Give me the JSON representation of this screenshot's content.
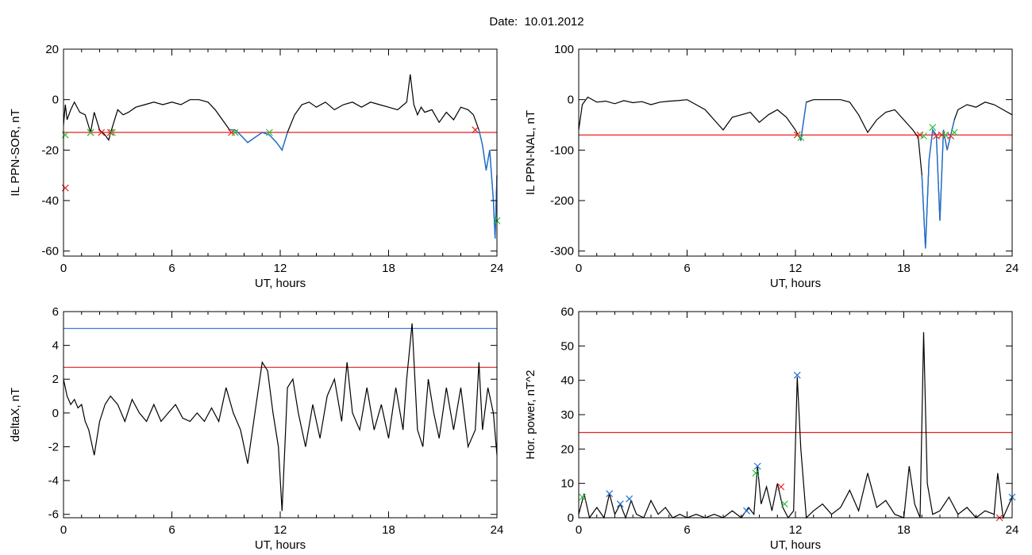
{
  "title": "Date:  10.01.2012",
  "colors": {
    "trace": "#000000",
    "threshold_red": "#e8211f",
    "threshold_blue": "#1f6fd1",
    "marker_green": "#2fbf3a"
  },
  "chart_data": [
    {
      "type": "line",
      "ylabel": "IL PPN-SOR, nT",
      "xlabel": "UT, hours",
      "xlim": [
        0,
        24
      ],
      "ylim": [
        -62,
        20
      ],
      "xticks": [
        "0",
        "6",
        "12",
        "18",
        "24"
      ],
      "yticks": [
        "20",
        "0",
        "-20",
        "-40",
        "-60"
      ],
      "ytick_values": [
        20,
        0,
        -20,
        -40,
        -60
      ],
      "thresholds": [
        {
          "y": -13,
          "color": "red"
        }
      ],
      "series": [
        {
          "x": [
            0,
            0.1,
            0.2,
            0.4,
            0.6,
            0.9,
            1.2,
            1.5,
            1.7,
            2.0,
            2.3,
            2.5,
            2.7,
            3.0,
            3.3,
            3.6,
            4.0,
            4.5,
            5.0,
            5.5,
            6.0,
            6.5,
            7.0,
            7.5,
            8.0,
            8.4,
            8.8,
            9.2,
            9.5,
            9.8,
            10.2,
            10.6,
            11.0,
            11.4,
            11.8,
            12.1,
            12.4,
            12.8,
            13.2,
            13.6,
            14.0,
            14.5,
            15.0,
            15.5,
            16.0,
            16.5,
            17.0,
            17.5,
            18.0,
            18.5,
            19.0,
            19.2,
            19.4,
            19.6,
            19.8,
            20.0,
            20.4,
            20.8,
            21.2,
            21.6,
            22.0,
            22.4,
            22.7,
            23.0,
            23.2,
            23.4,
            23.6,
            23.8,
            23.9,
            24.0
          ],
          "y": [
            -10,
            -2,
            -8,
            -4,
            -1,
            -5,
            -6,
            -13,
            -5,
            -12,
            -14,
            -16,
            -11,
            -4,
            -6,
            -5,
            -3,
            -2,
            -1,
            -2,
            -1,
            -2,
            0,
            0,
            -1,
            -4,
            -8,
            -12,
            -12,
            -14,
            -17,
            -15,
            -13,
            -14,
            -17,
            -20,
            -13,
            -6,
            -2,
            -1,
            -3,
            -1,
            -4,
            -2,
            -1,
            -3,
            -1,
            -2,
            -3,
            -4,
            -1,
            10,
            -2,
            -6,
            -3,
            -5,
            -4,
            -9,
            -5,
            -8,
            -3,
            -4,
            -6,
            -12,
            -18,
            -28,
            -20,
            -40,
            -55,
            -30
          ]
        }
      ],
      "markers": [
        {
          "x": 0.1,
          "y": -14,
          "color": "green"
        },
        {
          "x": 0.1,
          "y": -35,
          "color": "red"
        },
        {
          "x": 1.5,
          "y": -13,
          "color": "red"
        },
        {
          "x": 1.5,
          "y": -13,
          "color": "green"
        },
        {
          "x": 2.1,
          "y": -13,
          "color": "red"
        },
        {
          "x": 2.6,
          "y": -13,
          "color": "red"
        },
        {
          "x": 2.7,
          "y": -13,
          "color": "green"
        },
        {
          "x": 9.3,
          "y": -13,
          "color": "red"
        },
        {
          "x": 9.5,
          "y": -13,
          "color": "green"
        },
        {
          "x": 11.4,
          "y": -13,
          "color": "green"
        },
        {
          "x": 22.8,
          "y": -12,
          "color": "red"
        },
        {
          "x": 24,
          "y": -48,
          "color": "green"
        }
      ],
      "highlight_segments": [
        [
          9.2,
          12.5
        ],
        [
          22.9,
          24
        ]
      ]
    },
    {
      "type": "line",
      "ylabel": "IL PPN-NAL, nT",
      "xlabel": "UT, hours",
      "xlim": [
        0,
        24
      ],
      "ylim": [
        -310,
        100
      ],
      "xticks": [
        "0",
        "6",
        "12",
        "18",
        "24"
      ],
      "yticks": [
        "100",
        "0",
        "-100",
        "-200",
        "-300"
      ],
      "ytick_values": [
        100,
        0,
        -100,
        -200,
        -300
      ],
      "thresholds": [
        {
          "y": -70,
          "color": "red"
        }
      ],
      "series": [
        {
          "x": [
            0,
            0.2,
            0.5,
            1.0,
            1.5,
            2.0,
            2.5,
            3.0,
            3.5,
            4.0,
            4.5,
            5.0,
            5.5,
            6.0,
            6.5,
            7.0,
            7.5,
            8.0,
            8.5,
            9.0,
            9.5,
            10.0,
            10.5,
            11.0,
            11.5,
            12.0,
            12.3,
            12.6,
            13.0,
            13.5,
            14.0,
            14.5,
            15.0,
            15.5,
            16.0,
            16.5,
            17.0,
            17.5,
            18.0,
            18.5,
            18.8,
            19.0,
            19.2,
            19.4,
            19.6,
            19.8,
            20.0,
            20.2,
            20.4,
            20.6,
            20.8,
            21.0,
            21.5,
            22.0,
            22.5,
            23.0,
            23.5,
            24.0
          ],
          "y": [
            -60,
            -10,
            5,
            -5,
            -3,
            -8,
            -2,
            -6,
            -4,
            -10,
            -5,
            -3,
            -2,
            0,
            -10,
            -20,
            -40,
            -60,
            -35,
            -30,
            -25,
            -45,
            -30,
            -20,
            -35,
            -60,
            -80,
            -5,
            0,
            0,
            0,
            0,
            -5,
            -30,
            -65,
            -40,
            -25,
            -20,
            -40,
            -60,
            -75,
            -150,
            -295,
            -120,
            -60,
            -70,
            -240,
            -60,
            -100,
            -70,
            -40,
            -20,
            -10,
            -15,
            -5,
            -10,
            -20,
            -30
          ]
        }
      ],
      "markers": [
        {
          "x": 12.1,
          "y": -70,
          "color": "red"
        },
        {
          "x": 12.3,
          "y": -75,
          "color": "green"
        },
        {
          "x": 18.9,
          "y": -70,
          "color": "red"
        },
        {
          "x": 19.1,
          "y": -72,
          "color": "green"
        },
        {
          "x": 19.6,
          "y": -55,
          "color": "green"
        },
        {
          "x": 19.8,
          "y": -72,
          "color": "red"
        },
        {
          "x": 20.1,
          "y": -70,
          "color": "red"
        },
        {
          "x": 20.3,
          "y": -70,
          "color": "green"
        },
        {
          "x": 20.6,
          "y": -72,
          "color": "red"
        },
        {
          "x": 20.8,
          "y": -65,
          "color": "green"
        }
      ],
      "highlight_segments": [
        [
          12.1,
          12.6
        ],
        [
          18.9,
          20.8
        ]
      ]
    },
    {
      "type": "line",
      "ylabel": "deltaX, nT",
      "xlabel": "UT, hours",
      "xlim": [
        0,
        24
      ],
      "ylim": [
        -6.2,
        6
      ],
      "xticks": [
        "0",
        "6",
        "12",
        "18",
        "24"
      ],
      "yticks": [
        "6",
        "4",
        "2",
        "0",
        "-2",
        "-4",
        "-6"
      ],
      "ytick_values": [
        6,
        4,
        2,
        0,
        -2,
        -4,
        -6
      ],
      "thresholds": [
        {
          "y": 5.0,
          "color": "blue"
        },
        {
          "y": 2.7,
          "color": "red"
        }
      ],
      "series": [
        {
          "x": [
            0,
            0.2,
            0.4,
            0.6,
            0.8,
            1.0,
            1.2,
            1.4,
            1.7,
            2.0,
            2.3,
            2.6,
            3.0,
            3.4,
            3.8,
            4.2,
            4.6,
            5.0,
            5.4,
            5.8,
            6.2,
            6.6,
            7.0,
            7.4,
            7.8,
            8.2,
            8.6,
            9.0,
            9.4,
            9.8,
            10.2,
            10.6,
            11.0,
            11.3,
            11.6,
            11.9,
            12.1,
            12.4,
            12.7,
            13.0,
            13.4,
            13.8,
            14.2,
            14.6,
            15.0,
            15.4,
            15.7,
            16.0,
            16.4,
            16.8,
            17.2,
            17.6,
            18.0,
            18.4,
            18.8,
            19.0,
            19.3,
            19.6,
            19.9,
            20.2,
            20.5,
            20.8,
            21.2,
            21.6,
            22.0,
            22.4,
            22.8,
            23.0,
            23.2,
            23.5,
            23.8,
            24.0
          ],
          "y": [
            2,
            1,
            0.5,
            0.8,
            0.3,
            0.5,
            -0.5,
            -1,
            -2.5,
            -0.5,
            0.5,
            1,
            0.5,
            -0.5,
            0.8,
            0,
            -0.5,
            0.5,
            -0.5,
            0,
            0.5,
            -0.3,
            -0.5,
            0,
            -0.5,
            0.3,
            -0.5,
            1.5,
            0,
            -1,
            -3,
            0,
            3,
            2.5,
            0,
            -2,
            -5.8,
            1.5,
            2,
            0,
            -2,
            0.5,
            -1.5,
            1,
            2,
            -0.5,
            3,
            0,
            -1,
            1.5,
            -1,
            0.5,
            -1.5,
            1.5,
            -1,
            2,
            5.3,
            -1,
            -2,
            2,
            0,
            -1.5,
            1.5,
            -1,
            1.5,
            -2,
            -1,
            3,
            -1,
            1.5,
            0,
            -2.5
          ]
        }
      ],
      "markers": [],
      "highlight_segments": []
    },
    {
      "type": "line",
      "ylabel": "Hor. power, nT^2",
      "xlabel": "UT, hours",
      "xlim": [
        0,
        24
      ],
      "ylim": [
        0,
        60
      ],
      "xticks": [
        "0",
        "6",
        "12",
        "18",
        "24"
      ],
      "yticks": [
        "60",
        "50",
        "40",
        "30",
        "20",
        "10",
        "0"
      ],
      "ytick_values": [
        60,
        50,
        40,
        30,
        20,
        10,
        0
      ],
      "thresholds": [
        {
          "y": 24.8,
          "color": "red"
        }
      ],
      "series": [
        {
          "x": [
            0,
            0.3,
            0.6,
            1.0,
            1.4,
            1.7,
            2.0,
            2.3,
            2.6,
            2.9,
            3.2,
            3.6,
            4.0,
            4.4,
            4.8,
            5.2,
            5.6,
            6.0,
            6.5,
            7.0,
            7.5,
            8.0,
            8.5,
            9.0,
            9.4,
            9.7,
            9.9,
            10.1,
            10.4,
            10.7,
            11.0,
            11.3,
            11.6,
            11.9,
            12.1,
            12.3,
            12.6,
            13.0,
            13.5,
            14.0,
            14.5,
            15.0,
            15.5,
            16.0,
            16.5,
            17.0,
            17.5,
            18.0,
            18.3,
            18.6,
            18.9,
            19.1,
            19.3,
            19.6,
            20.0,
            20.5,
            21.0,
            21.5,
            22.0,
            22.5,
            23.0,
            23.2,
            23.5,
            24.0
          ],
          "y": [
            1,
            7,
            0,
            3,
            0,
            7,
            1,
            4,
            0,
            5,
            1,
            0,
            5,
            1,
            3,
            0,
            1,
            0,
            1,
            0,
            1,
            0,
            2,
            0,
            3,
            1,
            15,
            4,
            9,
            2,
            10,
            3,
            0,
            2,
            41,
            20,
            0,
            2,
            4,
            1,
            3,
            8,
            2,
            13,
            3,
            5,
            1,
            0,
            15,
            4,
            0,
            54,
            10,
            1,
            2,
            6,
            1,
            3,
            0,
            2,
            1,
            13,
            0,
            6
          ]
        }
      ],
      "markers": [
        {
          "x": 0.2,
          "y": 6,
          "color": "green"
        },
        {
          "x": 1.7,
          "y": 7,
          "color": "blue"
        },
        {
          "x": 2.3,
          "y": 4,
          "color": "blue"
        },
        {
          "x": 2.8,
          "y": 5.5,
          "color": "blue"
        },
        {
          "x": 9.3,
          "y": 2,
          "color": "blue"
        },
        {
          "x": 9.8,
          "y": 13,
          "color": "green"
        },
        {
          "x": 9.9,
          "y": 15,
          "color": "blue"
        },
        {
          "x": 11.2,
          "y": 9,
          "color": "red"
        },
        {
          "x": 11.4,
          "y": 4,
          "color": "green"
        },
        {
          "x": 12.1,
          "y": 41.5,
          "color": "blue"
        },
        {
          "x": 23.3,
          "y": 0,
          "color": "red"
        },
        {
          "x": 24,
          "y": 6,
          "color": "blue"
        }
      ],
      "highlight_segments": []
    }
  ]
}
